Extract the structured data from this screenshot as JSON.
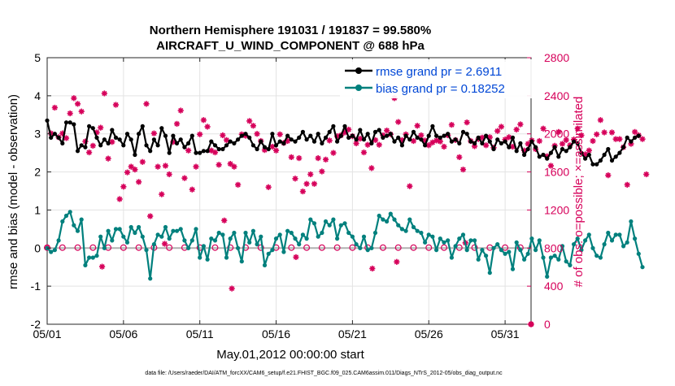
{
  "chart_data": {
    "type": "line",
    "title_line1": "Northern Hemisphere 191031 / 191837 = 99.580%",
    "title_line2": "AIRCRAFT_U_WIND_COMPONENT @ 688 hPa",
    "xlabel": "May.01,2012 00:00:00 start",
    "ylabel_left": "rmse and bias (model - observation)",
    "ylabel_right": "# of obs: o=possible; ×=assimilated",
    "footer": "data file: /Users/raeder/DAI/ATM_forcXX/CAM6_setup/f.e21.FHIST_BGC.f09_025.CAM6assim.011/Diags_NTrS_2012-05/obs_diag_output.nc",
    "x_range": [
      1,
      32.7
    ],
    "y_left_range": [
      -2,
      5
    ],
    "y_right_range": [
      0,
      2800
    ],
    "x_ticks": [
      1,
      6,
      11,
      16,
      21,
      26,
      31
    ],
    "x_tick_labels": [
      "05/01",
      "05/06",
      "05/11",
      "05/16",
      "05/21",
      "05/26",
      "05/31"
    ],
    "y_left_ticks": [
      -2,
      -1,
      0,
      1,
      2,
      3,
      4,
      5
    ],
    "y_left_tick_labels": [
      "-2",
      "-1",
      "0",
      "1",
      "2",
      "3",
      "4",
      "5"
    ],
    "y_right_ticks": [
      0,
      400,
      800,
      1200,
      1600,
      2000,
      2400,
      2800
    ],
    "y_right_tick_labels": [
      "0",
      "400",
      "800",
      "1200",
      "1600",
      "2000",
      "2400",
      "2800"
    ],
    "grid": true,
    "legend_position": "top-right",
    "colors": {
      "rmse": "#000000",
      "bias": "#00807d",
      "obs": "#d6005a",
      "legend_text": "#0047d6",
      "zero_line": "#b0b0b0"
    },
    "series": [
      {
        "name": "rmse grand pr = 2.6911",
        "axis": "left",
        "x_start": 1.0,
        "dx": 0.25,
        "values": [
          3.35,
          2.9,
          3.0,
          2.9,
          2.75,
          3.3,
          3.3,
          3.25,
          2.55,
          2.7,
          2.65,
          3.2,
          3.15,
          2.9,
          2.7,
          2.85,
          2.75,
          3.1,
          2.9,
          2.85,
          2.7,
          3.0,
          2.85,
          2.45,
          3.0,
          3.2,
          2.7,
          2.55,
          2.85,
          2.7,
          3.15,
          2.95,
          2.5,
          2.95,
          2.75,
          2.85,
          2.65,
          2.75,
          2.95,
          2.5,
          2.5,
          2.55,
          2.55,
          2.8,
          2.7,
          2.6,
          2.6,
          2.7,
          2.8,
          2.75,
          2.85,
          2.95,
          3.0,
          2.9,
          2.7,
          2.6,
          2.8,
          2.65,
          2.6,
          3.0,
          2.7,
          2.8,
          2.75,
          2.95,
          2.85,
          2.8,
          2.9,
          3.05,
          2.85,
          2.95,
          2.8,
          3.0,
          2.75,
          2.9,
          3.05,
          3.2,
          2.8,
          2.95,
          3.2,
          2.9,
          2.95,
          2.85,
          3.1,
          2.85,
          3.0,
          2.75,
          3.05,
          3.1,
          2.9,
          2.95,
          3.0,
          2.8,
          2.9,
          2.7,
          2.95,
          2.85,
          3.05,
          2.9,
          2.85,
          2.7,
          2.95,
          3.2,
          2.95,
          2.9,
          2.95,
          3.0,
          2.8,
          2.85,
          2.75,
          3.05,
          3.0,
          2.8,
          2.75,
          2.9,
          2.75,
          2.95,
          2.8,
          2.6,
          2.85,
          2.75,
          2.8,
          2.65,
          2.9,
          2.55,
          2.75,
          2.45,
          2.6,
          2.8,
          2.65,
          2.4,
          2.45,
          2.35,
          2.5,
          2.65,
          2.4,
          2.6,
          2.55,
          2.65,
          2.8,
          2.75,
          2.5,
          2.35,
          2.45,
          2.2,
          2.2,
          2.3,
          2.45,
          2.6,
          2.3,
          2.4,
          2.5,
          2.65,
          2.9,
          2.8,
          2.9,
          2.95
        ]
      },
      {
        "name": "bias grand pr = 0.18252",
        "axis": "left",
        "x_start": 1.0,
        "dx": 0.25,
        "values": [
          0.0,
          -0.1,
          -0.05,
          0.2,
          0.7,
          0.85,
          0.95,
          0.6,
          0.45,
          0.75,
          -0.45,
          -0.25,
          -0.25,
          -0.2,
          0.3,
          0.0,
          0.45,
          0.2,
          0.5,
          0.5,
          0.3,
          0.15,
          0.55,
          0.4,
          0.55,
          0.3,
          -0.05,
          -0.8,
          0.1,
          0.35,
          0.3,
          0.55,
          0.25,
          0.45,
          0.45,
          0.5,
          0.2,
          0.0,
          0.2,
          0.5,
          -0.25,
          0.05,
          -0.3,
          0.25,
          0.2,
          0.4,
          0.35,
          -0.25,
          0.25,
          0.4,
          0.0,
          -0.35,
          0.4,
          0.15,
          0.45,
          0.1,
          0.3,
          -0.45,
          -0.15,
          -0.05,
          0.25,
          0.35,
          -0.1,
          0.45,
          0.4,
          0.25,
          0.1,
          0.35,
          0.25,
          0.75,
          0.65,
          0.3,
          0.4,
          0.7,
          0.6,
          0.75,
          0.25,
          0.6,
          0.65,
          0.4,
          0.3,
          0.1,
          0.0,
          0.3,
          -0.05,
          0.0,
          0.4,
          0.85,
          0.75,
          0.7,
          0.9,
          0.75,
          0.6,
          0.5,
          0.45,
          0.75,
          0.55,
          0.45,
          0.4,
          0.15,
          0.35,
          0.3,
          -0.05,
          0.25,
          0.15,
          0.2,
          -0.25,
          0.05,
          0.25,
          0.35,
          -0.05,
          0.2,
          0.2,
          -0.3,
          -0.05,
          -0.2,
          -0.65,
          0.0,
          0.1,
          -0.05,
          -0.15,
          -0.1,
          -0.55,
          0.15,
          -0.05,
          -0.3,
          -0.15,
          0.25,
          -0.05,
          0.2,
          -0.25,
          -0.75,
          -0.25,
          -0.2,
          -0.3,
          0.05,
          -0.35,
          -0.45,
          0.1,
          0.25,
          -0.05,
          0.2,
          0.35,
          0.0,
          -0.2,
          -0.25,
          0.1,
          0.4,
          0.2,
          0.35,
          0.35,
          0.05,
          0.15,
          0.7,
          0.25,
          -0.15,
          -0.5
        ]
      },
      {
        "name": "obs assimilated",
        "axis": "right",
        "x_start": 1.0,
        "dx": 0.25,
        "values": [
          805,
          2005,
          2275,
          1965,
          2005,
          1955,
          2215,
          2375,
          2315,
          2235,
          1920,
          1805,
          1875,
          2015,
          2065,
          2425,
          1740,
          1915,
          2305,
          1315,
          1445,
          1595,
          1655,
          1625,
          1495,
          1705,
          2315,
          1135,
          2005,
          1655,
          1365,
          1665,
          1575,
          1915,
          2105,
          2245,
          1535,
          1825,
          1415,
          1655,
          1995,
          2145,
          2075,
          1825,
          1805,
          1675,
          1985,
          1935,
          1685,
          1655,
          1465,
          1995,
          1980,
          2135,
          2085,
          2000,
          1925,
          1830,
          1440,
          1865,
          1825,
          1995,
          1905,
          1925,
          1755,
          1530,
          1745,
          1395,
          1475,
          1575,
          1475,
          1745,
          1605,
          1730,
          1930,
          1800,
          1975,
          1985,
          2015,
          2045,
          1975,
          1900,
          1950,
          1805,
          1885,
          1640,
          1935,
          1885,
          1985,
          2035,
          1995,
          2375,
          2125,
          1935,
          1995,
          1450,
          1925,
          2085,
          1985,
          1930,
          1880,
          1910,
          1930,
          1920,
          1865,
          1985,
          2095,
          1935,
          1755,
          1625,
          2120,
          1925,
          1870,
          1945,
          1960,
          1880,
          1965,
          1855,
          2030,
          2075,
          1940,
          1965,
          1865,
          2045,
          2100,
          1825,
          1895,
          1930,
          1840,
          1925,
          2055,
          1765,
          1665,
          1875,
          2020,
          1895,
          1935,
          1880,
          1940,
          2055,
          1985,
          1785,
          1825,
          1925,
          1995,
          2145,
          2015,
          1565,
          2015,
          1945,
          1945,
          1860,
          1465,
          1895,
          2020,
          1985,
          1945,
          1575
        ]
      },
      {
        "name": "obs possible",
        "axis": "right",
        "x_start": 1.0,
        "dx": 1.0,
        "values": [
          805,
          805,
          805,
          805,
          805,
          805,
          805,
          805,
          805,
          805,
          805,
          805,
          805,
          805,
          805,
          805,
          805,
          805,
          805,
          805,
          805,
          805,
          805,
          805,
          805,
          805,
          805,
          805,
          805,
          805,
          805,
          805
        ]
      }
    ],
    "annotations": [
      {
        "kind": "extra-point",
        "series": "obs assimilated",
        "x": 32.7,
        "y_right": 0
      },
      {
        "kind": "extra-point",
        "series": "obs assimilated",
        "x": 4.6,
        "y_right": 605
      },
      {
        "kind": "extra-point",
        "series": "obs assimilated",
        "x": 13.1,
        "y_right": 375
      },
      {
        "kind": "extra-point",
        "series": "obs assimilated",
        "x": 17.3,
        "y_right": 705
      },
      {
        "kind": "extra-point",
        "series": "obs assimilated",
        "x": 22.3,
        "y_right": 585
      },
      {
        "kind": "extra-point",
        "series": "obs assimilated",
        "x": 23.9,
        "y_right": 655
      },
      {
        "kind": "extra-point",
        "series": "obs assimilated",
        "x": 8.7,
        "y_right": 845
      },
      {
        "kind": "extra-point",
        "series": "obs assimilated",
        "x": 12.6,
        "y_right": 1090
      },
      {
        "kind": "extra-point",
        "series": "obs assimilated",
        "x": 28.4,
        "y_right": 855
      }
    ]
  }
}
